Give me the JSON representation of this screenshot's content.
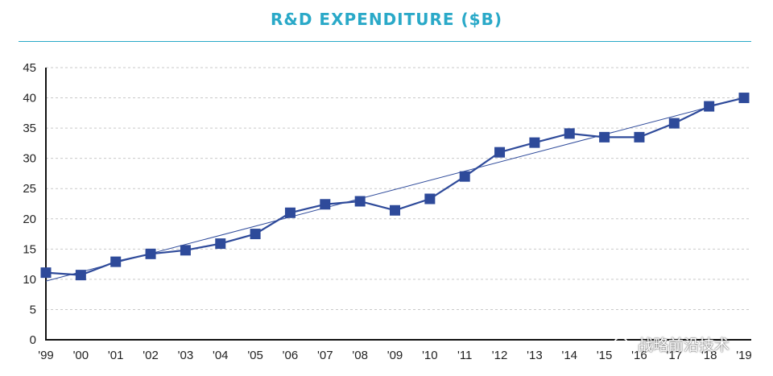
{
  "chart_data": {
    "type": "line",
    "title": "R&D EXPENDITURE ($B)",
    "categories": [
      "'99",
      "'00",
      "'01",
      "'02",
      "'03",
      "'04",
      "'05",
      "'06",
      "'07",
      "'08",
      "'09",
      "'10",
      "'11",
      "'12",
      "'13",
      "'14",
      "'15",
      "'16",
      "'17",
      "'18",
      "'19"
    ],
    "series": [
      {
        "values": [
          11.1,
          10.7,
          12.9,
          14.2,
          14.8,
          15.9,
          17.5,
          21.0,
          22.4,
          22.9,
          21.4,
          23.3,
          27.0,
          31.0,
          32.6,
          34.1,
          33.5,
          33.5,
          35.8,
          38.6,
          40.0
        ],
        "color": "#2e4a9a"
      }
    ],
    "trendline": {
      "start": 9.7,
      "end": 40.0,
      "color": "#2e4a9a"
    },
    "ylim": [
      0,
      45
    ],
    "yticks": [
      0,
      5,
      10,
      15,
      20,
      25,
      30,
      35,
      40,
      45
    ],
    "grid": true,
    "grid_style": "dashed",
    "accent_color": "#2aa9c8"
  },
  "watermark": {
    "text": "战略前沿技术",
    "icon": "wechat-icon"
  }
}
